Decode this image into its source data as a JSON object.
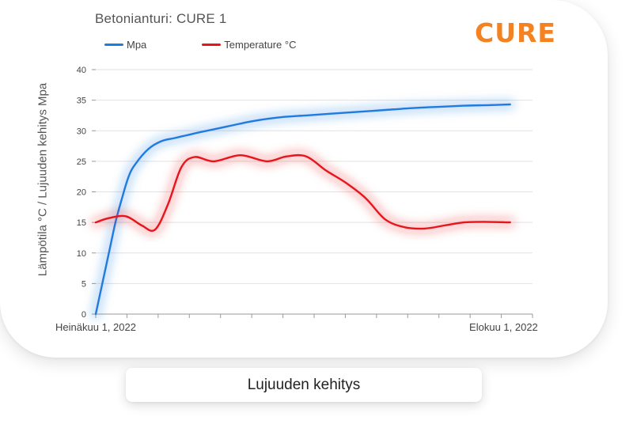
{
  "caption": "Lujuuden kehitys",
  "logo": "CURE",
  "chart_data": {
    "type": "line",
    "title": "Betonianturi: CURE 1",
    "xlabel": "",
    "ylabel": "Lämpötila °C / Lujuuden kehitys Mpa",
    "ylim": [
      0,
      40
    ],
    "yticks": [
      "0",
      "5",
      "10",
      "15",
      "20",
      "25",
      "30",
      "35",
      "40"
    ],
    "x_tick_labels": [
      {
        "label": "Heinäkuu 1, 2022",
        "x": 0
      },
      {
        "label": "Elokuu 1, 2022",
        "x": 31
      }
    ],
    "grid": true,
    "legend": "top-left",
    "series": [
      {
        "name": "Mpa",
        "color": "#1e7be0",
        "x": [
          0,
          0.5,
          1,
          1.5,
          2,
          2.5,
          3,
          4,
          5,
          6,
          7,
          8,
          10,
          12,
          14,
          16,
          18,
          20,
          22,
          24,
          26,
          28,
          30,
          31.5
        ],
        "values": [
          0,
          5,
          10,
          15,
          19,
          22.5,
          24.5,
          27,
          28.3,
          28.8,
          29.3,
          29.8,
          30.7,
          31.6,
          32.2,
          32.5,
          32.8,
          33.1,
          33.4,
          33.7,
          33.9,
          34.1,
          34.2,
          34.3
        ]
      },
      {
        "name": "Temperature °C",
        "color": "#e8141c",
        "x": [
          0,
          1,
          2.3,
          3.5,
          4.5,
          5.5,
          6.5,
          7.5,
          9,
          11,
          13,
          14.5,
          16,
          17.5,
          19,
          20.5,
          22,
          23.5,
          25,
          26.5,
          28,
          29.5,
          31.5
        ],
        "values": [
          15,
          15.7,
          16,
          14.5,
          13.8,
          18,
          24,
          25.7,
          25,
          26,
          25,
          25.8,
          25.8,
          23.5,
          21.5,
          19,
          15.5,
          14.2,
          14,
          14.5,
          15,
          15.1,
          15
        ]
      }
    ]
  }
}
